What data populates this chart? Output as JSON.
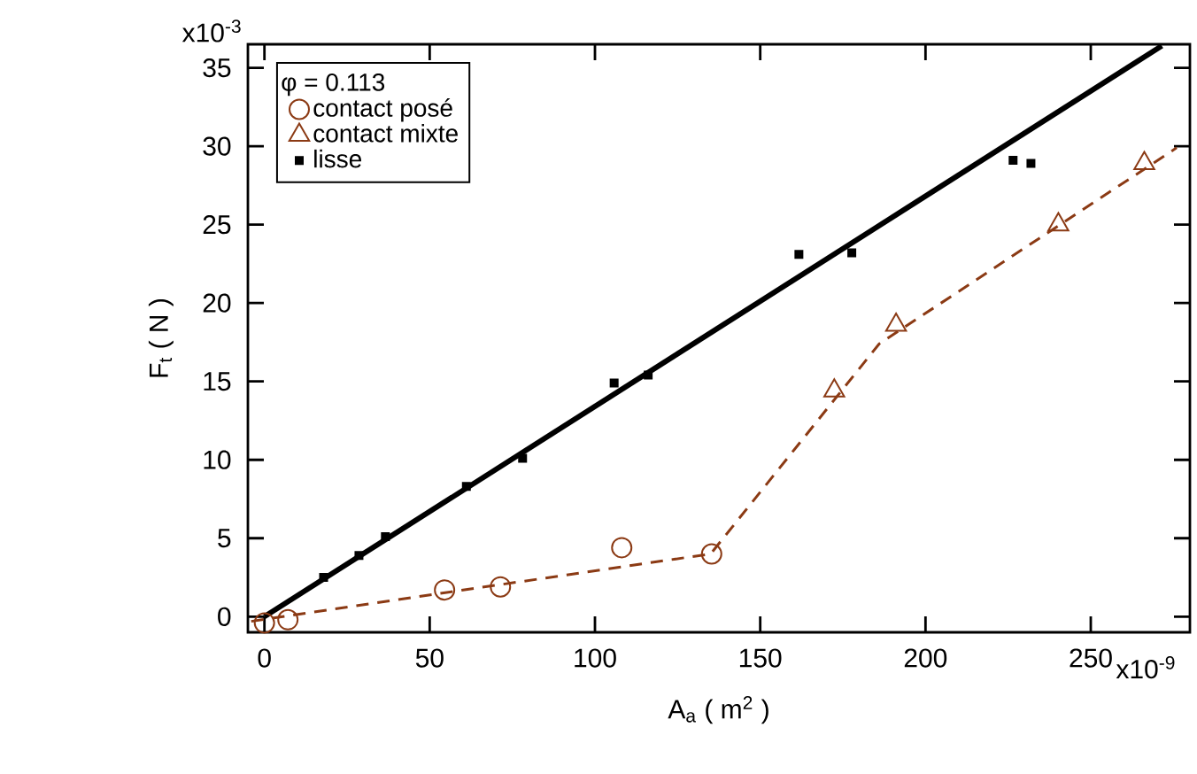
{
  "chart_data": {
    "type": "scatter",
    "xlabel": "A$_{a}$ ( m$^{2}$ )",
    "ylabel": "F$_{t}$ ( N )",
    "legend_title": "φ = 0.113",
    "xlim": [
      -5,
      280
    ],
    "ylim": [
      -1,
      36.5
    ],
    "xticks": [
      0,
      50,
      100,
      150,
      200,
      250
    ],
    "yticks": [
      0,
      5,
      10,
      15,
      20,
      25,
      30,
      35
    ],
    "annotations": [
      "x10$^{-9}$",
      "x10$^{-3}$"
    ],
    "grid": false,
    "legend": "top left",
    "series": [
      {
        "name": "contact posé",
        "marker": "circle",
        "color": "#8b3a14",
        "x": [
          0,
          7.1,
          54.5,
          71.4,
          108.1,
          135.3
        ],
        "values": [
          -0.4,
          -0.2,
          1.7,
          1.9,
          4.4,
          4.0
        ]
      },
      {
        "name": "contact mixte",
        "marker": "triangle",
        "color": "#8b3a14",
        "x": [
          172.4,
          191.1,
          240.2,
          266.2
        ],
        "values": [
          14.4,
          18.6,
          25.0,
          28.9
        ]
      },
      {
        "name": "lisse",
        "marker": "square",
        "color": "#000000",
        "x": [
          17.9,
          28.6,
          36.6,
          61.1,
          78.1,
          105.8,
          116.1,
          161.7,
          177.7,
          226.5,
          231.9
        ],
        "values": [
          2.5,
          3.9,
          5.1,
          8.3,
          10.1,
          14.9,
          15.4,
          23.1,
          23.2,
          29.1,
          28.9
        ]
      },
      {
        "type": "line",
        "line_style": "solid",
        "color": "#000000",
        "x": [
          0,
          271.5
        ],
        "values": [
          0,
          36.4
        ]
      },
      {
        "type": "line",
        "line_style": "dashed",
        "color": "#8b3a14",
        "x": [
          -4,
          70,
          135,
          186,
          276
        ],
        "values": [
          -0.3,
          2.0,
          4.0,
          17.4,
          29.9
        ]
      }
    ]
  }
}
